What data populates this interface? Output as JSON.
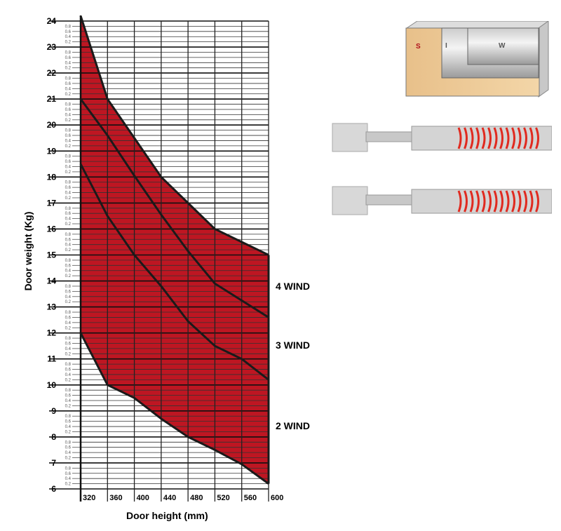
{
  "chart_data": {
    "type": "area",
    "title": "",
    "xlabel": "Door height (mm)",
    "ylabel": "Door weight (Kg)",
    "xlim": [
      320,
      600
    ],
    "ylim": [
      6,
      24
    ],
    "x_ticks": [
      "320",
      "360",
      "400",
      "440",
      "480",
      "520",
      "560",
      "600"
    ],
    "y_major_ticks": [
      "6",
      "7",
      "8",
      "9",
      "10",
      "11",
      "12",
      "13",
      "14",
      "15",
      "16",
      "17",
      "18",
      "19",
      "20",
      "21",
      "22",
      "23",
      "24"
    ],
    "y_minor_tick_labels": [
      "0.8",
      "0.6",
      "0.4",
      "0.2"
    ],
    "grid": true,
    "fill_color": "#be1622",
    "x": [
      320,
      360,
      400,
      440,
      480,
      520,
      560,
      600
    ],
    "upper_boundary": [
      24.2,
      21.0,
      19.5,
      18.0,
      17.0,
      16.0,
      15.5,
      15.0
    ],
    "lower_boundary": [
      12.0,
      10.0,
      9.5,
      8.7,
      8.0,
      7.5,
      6.95,
      6.2
    ],
    "series": [
      {
        "values": [
          21.0,
          19.6,
          18.05,
          16.55,
          15.15,
          13.9,
          13.25,
          12.6
        ]
      },
      {
        "values": [
          18.5,
          16.5,
          15.0,
          13.8,
          12.45,
          11.5,
          11.0,
          10.2
        ]
      }
    ],
    "region_labels": [
      "4 WIND",
      "3 WIND",
      "2 WIND"
    ]
  },
  "illustration": {
    "labels": [
      "S",
      "I",
      "W"
    ]
  }
}
